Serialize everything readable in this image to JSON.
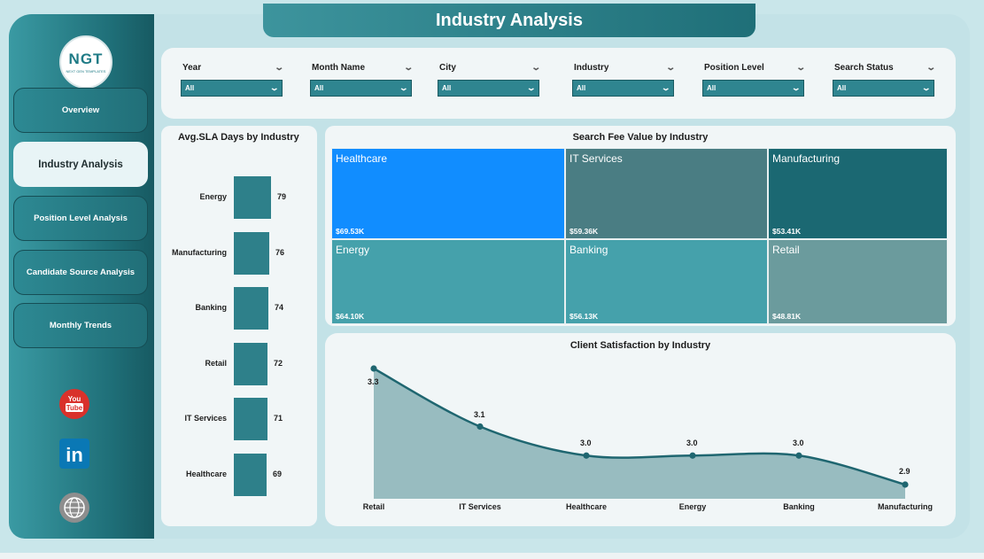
{
  "app": {
    "title": "Industry Analysis",
    "logo_text": "NGT",
    "logo_subtext": "NEXT GEN TEMPLATES"
  },
  "nav": {
    "items": [
      {
        "label": "Overview"
      },
      {
        "label": "Industry Analysis",
        "active": true
      },
      {
        "label": "Position Level Analysis"
      },
      {
        "label": "Candidate Source Analysis"
      },
      {
        "label": "Monthly Trends"
      }
    ]
  },
  "social": {
    "youtube_text": "You Tube",
    "youtube_icon": "youtube-icon",
    "linkedin_text": "in",
    "linkedin_icon": "linkedin-icon",
    "web_text": "WWW",
    "web_icon": "globe-icon"
  },
  "filters": [
    {
      "label": "Year",
      "value": "All"
    },
    {
      "label": "Month Name",
      "value": "All"
    },
    {
      "label": "City",
      "value": "All"
    },
    {
      "label": "Industry",
      "value": "All"
    },
    {
      "label": "Position Level",
      "value": "All"
    },
    {
      "label": "Search Status",
      "value": "All"
    }
  ],
  "colors": {
    "accent": "#2e808a",
    "sidebar": "#1f6f78",
    "highlight": "#118dff",
    "card_bg": "#f1f6f7",
    "panel_bg": "#c3e2e7"
  },
  "chart_data": [
    {
      "type": "bar",
      "title": "Avg.SLA Days by Industry",
      "orientation": "horizontal",
      "categories": [
        "Energy",
        "Manufacturing",
        "Banking",
        "Retail",
        "IT Services",
        "Healthcare"
      ],
      "values": [
        79,
        76,
        74,
        72,
        71,
        69
      ],
      "value_labels": [
        "79",
        "76",
        "74",
        "72",
        "71",
        "69"
      ],
      "grid": false
    },
    {
      "type": "treemap",
      "title": "Search Fee Value by Industry",
      "categories": [
        "Healthcare",
        "IT Services",
        "Manufacturing",
        "Energy",
        "Banking",
        "Retail"
      ],
      "values": [
        69530,
        59360,
        53410,
        64100,
        56130,
        48810
      ],
      "value_labels": [
        "$69.53K",
        "$59.36K",
        "$53.41K",
        "$64.10K",
        "$56.13K",
        "$48.81K"
      ],
      "colors": [
        "#118dff",
        "#4a7d83",
        "#1b6872",
        "#45a1ab",
        "#45a1ab",
        "#6b9b9d"
      ]
    },
    {
      "type": "area",
      "title": "Client Satisfaction by Industry",
      "categories": [
        "Retail",
        "IT Services",
        "Healthcare",
        "Energy",
        "Banking",
        "Manufacturing"
      ],
      "values": [
        3.3,
        3.1,
        3.0,
        3.0,
        3.0,
        2.9
      ],
      "value_labels": [
        "3.3",
        "3.1",
        "3.0",
        "3.0",
        "3.0",
        "2.9"
      ],
      "grid": false
    }
  ]
}
